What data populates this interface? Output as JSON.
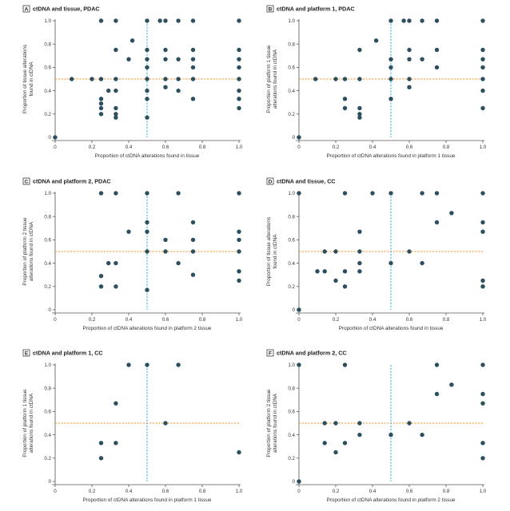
{
  "chart_data": [
    {
      "letter": "A",
      "title": "ctDNA and tissue, PDAC",
      "type": "scatter",
      "xlabel": "Proportion of ctDNA alterations found in tissue",
      "ylabel": [
        "Proportion of tissue alterations",
        "found in ctDNA"
      ],
      "xlim": [
        0,
        1.0
      ],
      "ylim": [
        0,
        1.0
      ],
      "xticks": [
        "0",
        "0.2",
        "0.4",
        "0.6",
        "0.8",
        "1.0"
      ],
      "yticks": [
        "0",
        "0.2",
        "0.4",
        "0.6",
        "0.8",
        "1.0"
      ],
      "hline": 0.5,
      "vline": 0.5,
      "points": [
        {
          "x": 0,
          "y": 0
        },
        {
          "x": 0.09,
          "y": 0.5
        },
        {
          "x": 0.2,
          "y": 0.5
        },
        {
          "x": 0.25,
          "y": 0.5
        },
        {
          "x": 0.25,
          "y": 0.33
        },
        {
          "x": 0.25,
          "y": 0.29
        },
        {
          "x": 0.25,
          "y": 0.25
        },
        {
          "x": 0.25,
          "y": 0.2
        },
        {
          "x": 0.25,
          "y": 1
        },
        {
          "x": 0.29,
          "y": 0.4
        },
        {
          "x": 0.33,
          "y": 0.5
        },
        {
          "x": 0.33,
          "y": 0.4
        },
        {
          "x": 0.33,
          "y": 0.25
        },
        {
          "x": 0.33,
          "y": 0.2
        },
        {
          "x": 0.33,
          "y": 0.17
        },
        {
          "x": 0.33,
          "y": 0.75
        },
        {
          "x": 0.33,
          "y": 1
        },
        {
          "x": 0.4,
          "y": 0.67
        },
        {
          "x": 0.42,
          "y": 0.83
        },
        {
          "x": 0.5,
          "y": 1
        },
        {
          "x": 0.5,
          "y": 0.75
        },
        {
          "x": 0.5,
          "y": 0.67
        },
        {
          "x": 0.5,
          "y": 0.6
        },
        {
          "x": 0.5,
          "y": 0.5
        },
        {
          "x": 0.5,
          "y": 0.4
        },
        {
          "x": 0.5,
          "y": 0.33
        },
        {
          "x": 0.5,
          "y": 0.17
        },
        {
          "x": 0.57,
          "y": 1
        },
        {
          "x": 0.6,
          "y": 1
        },
        {
          "x": 0.6,
          "y": 0.75
        },
        {
          "x": 0.6,
          "y": 0.67
        },
        {
          "x": 0.6,
          "y": 0.5
        },
        {
          "x": 0.6,
          "y": 0.43
        },
        {
          "x": 0.67,
          "y": 1
        },
        {
          "x": 0.67,
          "y": 0.67
        },
        {
          "x": 0.67,
          "y": 0.5
        },
        {
          "x": 0.67,
          "y": 0.4
        },
        {
          "x": 0.75,
          "y": 1
        },
        {
          "x": 0.75,
          "y": 0.75
        },
        {
          "x": 0.75,
          "y": 0.67
        },
        {
          "x": 0.75,
          "y": 0.6
        },
        {
          "x": 0.75,
          "y": 0.5
        },
        {
          "x": 0.75,
          "y": 0.33
        },
        {
          "x": 1,
          "y": 1
        },
        {
          "x": 1,
          "y": 0.75
        },
        {
          "x": 1,
          "y": 0.67
        },
        {
          "x": 1,
          "y": 0.6
        },
        {
          "x": 1,
          "y": 0.5
        },
        {
          "x": 1,
          "y": 0.4
        },
        {
          "x": 1,
          "y": 0.33
        },
        {
          "x": 1,
          "y": 0.25
        }
      ]
    },
    {
      "letter": "B",
      "title": "ctDNA and platform 1, PDAC",
      "type": "scatter",
      "xlabel": "Proportion of ctDNA alterations found in platform 1 tissue",
      "ylabel": [
        "Proportion of platform 1 tissue",
        "alterations found in ctDNA"
      ],
      "xlim": [
        0,
        1.0
      ],
      "ylim": [
        0,
        1.0
      ],
      "xticks": [
        "0",
        "0.2",
        "0.4",
        "0.6",
        "0.8",
        "1.0"
      ],
      "yticks": [
        "0",
        "0.2",
        "0.4",
        "0.6",
        "0.8",
        "1.0"
      ],
      "hline": 0.5,
      "vline": 0.5,
      "points": [
        {
          "x": 0,
          "y": 0
        },
        {
          "x": 0.09,
          "y": 0.5
        },
        {
          "x": 0.2,
          "y": 0.5
        },
        {
          "x": 0.25,
          "y": 0.5
        },
        {
          "x": 0.25,
          "y": 0.33
        },
        {
          "x": 0.25,
          "y": 0.25
        },
        {
          "x": 0.33,
          "y": 0.75
        },
        {
          "x": 0.33,
          "y": 0.5
        },
        {
          "x": 0.33,
          "y": 0.25
        },
        {
          "x": 0.33,
          "y": 0.2
        },
        {
          "x": 0.33,
          "y": 0.17
        },
        {
          "x": 0.42,
          "y": 0.83
        },
        {
          "x": 0.5,
          "y": 1
        },
        {
          "x": 0.5,
          "y": 0.67
        },
        {
          "x": 0.5,
          "y": 0.6
        },
        {
          "x": 0.5,
          "y": 0.5
        },
        {
          "x": 0.5,
          "y": 0.33
        },
        {
          "x": 0.57,
          "y": 1
        },
        {
          "x": 0.6,
          "y": 1
        },
        {
          "x": 0.6,
          "y": 0.75
        },
        {
          "x": 0.6,
          "y": 0.67
        },
        {
          "x": 0.6,
          "y": 0.5
        },
        {
          "x": 0.6,
          "y": 0.43
        },
        {
          "x": 0.67,
          "y": 1
        },
        {
          "x": 0.67,
          "y": 0.67
        },
        {
          "x": 0.75,
          "y": 1
        },
        {
          "x": 0.75,
          "y": 0.75
        },
        {
          "x": 0.75,
          "y": 0.6
        },
        {
          "x": 1,
          "y": 1
        },
        {
          "x": 1,
          "y": 0.75
        },
        {
          "x": 1,
          "y": 0.67
        },
        {
          "x": 1,
          "y": 0.6
        },
        {
          "x": 1,
          "y": 0.5
        },
        {
          "x": 1,
          "y": 0.4
        },
        {
          "x": 1,
          "y": 0.25
        }
      ]
    },
    {
      "letter": "C",
      "title": "ctDNA and platform 2, PDAC",
      "type": "scatter",
      "xlabel": "Proportion of ctDNA alterations found in platform 2 tissue",
      "ylabel": [
        "Proportion of platform 2 tissue",
        "alterations found in ctDNA"
      ],
      "xlim": [
        0,
        1.0
      ],
      "ylim": [
        0,
        1.0
      ],
      "xticks": [
        "0",
        "0.2",
        "0.4",
        "0.6",
        "0.8",
        "1.0"
      ],
      "yticks": [
        "0",
        "0.2",
        "0.4",
        "0.6",
        "0.8",
        "1.0"
      ],
      "hline": 0.5,
      "vline": 0.5,
      "points": [
        {
          "x": 0.25,
          "y": 1
        },
        {
          "x": 0.25,
          "y": 0.29
        },
        {
          "x": 0.25,
          "y": 0.2
        },
        {
          "x": 0.29,
          "y": 0.4
        },
        {
          "x": 0.33,
          "y": 1
        },
        {
          "x": 0.33,
          "y": 0.4
        },
        {
          "x": 0.33,
          "y": 0.2
        },
        {
          "x": 0.4,
          "y": 0.67
        },
        {
          "x": 0.5,
          "y": 1
        },
        {
          "x": 0.5,
          "y": 0.75
        },
        {
          "x": 0.5,
          "y": 0.67
        },
        {
          "x": 0.5,
          "y": 0.5
        },
        {
          "x": 0.5,
          "y": 0.17
        },
        {
          "x": 0.6,
          "y": 0.6
        },
        {
          "x": 0.6,
          "y": 0.5
        },
        {
          "x": 0.67,
          "y": 1
        },
        {
          "x": 0.67,
          "y": 0.4
        },
        {
          "x": 0.75,
          "y": 0.75
        },
        {
          "x": 0.75,
          "y": 0.6
        },
        {
          "x": 0.75,
          "y": 0.5
        },
        {
          "x": 0.75,
          "y": 0.3
        },
        {
          "x": 1,
          "y": 1
        },
        {
          "x": 1,
          "y": 0.67
        },
        {
          "x": 1,
          "y": 0.6
        },
        {
          "x": 1,
          "y": 0.5
        },
        {
          "x": 1,
          "y": 0.33
        },
        {
          "x": 1,
          "y": 0.25
        }
      ]
    },
    {
      "letter": "D",
      "title": "ctDNA and tissue, CC",
      "type": "scatter",
      "xlabel": "Proportion of ctDNA alterations found in tissue",
      "ylabel": [
        "Proportion of tissue alterations",
        "found in ctDNA"
      ],
      "xlim": [
        0,
        1.0
      ],
      "ylim": [
        0,
        1.0
      ],
      "xticks": [
        "0",
        "0.2",
        "0.4",
        "0.6",
        "0.8",
        "1.0"
      ],
      "yticks": [
        "0",
        "0.2",
        "0.4",
        "0.6",
        "0.8",
        "1.0"
      ],
      "hline": 0.5,
      "vline": 0.5,
      "points": [
        {
          "x": 0,
          "y": 0
        },
        {
          "x": 0,
          "y": 1
        },
        {
          "x": 0.1,
          "y": 0.33
        },
        {
          "x": 0.14,
          "y": 0.5
        },
        {
          "x": 0.14,
          "y": 0.33
        },
        {
          "x": 0.2,
          "y": 0.5
        },
        {
          "x": 0.2,
          "y": 0.25
        },
        {
          "x": 0.25,
          "y": 1
        },
        {
          "x": 0.25,
          "y": 0.33
        },
        {
          "x": 0.25,
          "y": 0.2
        },
        {
          "x": 0.33,
          "y": 0.67
        },
        {
          "x": 0.33,
          "y": 0.5
        },
        {
          "x": 0.33,
          "y": 0.4
        },
        {
          "x": 0.33,
          "y": 0.33
        },
        {
          "x": 0.4,
          "y": 1
        },
        {
          "x": 0.5,
          "y": 1
        },
        {
          "x": 0.5,
          "y": 0.4
        },
        {
          "x": 0.6,
          "y": 0.5
        },
        {
          "x": 0.67,
          "y": 1
        },
        {
          "x": 0.67,
          "y": 0.4
        },
        {
          "x": 0.75,
          "y": 1
        },
        {
          "x": 0.75,
          "y": 0.75
        },
        {
          "x": 0.83,
          "y": 0.83
        },
        {
          "x": 1,
          "y": 1
        },
        {
          "x": 1,
          "y": 0.75
        },
        {
          "x": 1,
          "y": 0.67
        },
        {
          "x": 1,
          "y": 0.25
        },
        {
          "x": 1,
          "y": 0.2
        }
      ]
    },
    {
      "letter": "E",
      "title": "ctDNA and platform 1, CC",
      "type": "scatter",
      "xlabel": "Proportion of ctDNA alterations found in platform 1 tissue",
      "ylabel": [
        "Proportion of platform 1 tissue",
        "alterations found in ctDNA"
      ],
      "xlim": [
        0,
        1.0
      ],
      "ylim": [
        0,
        1.0
      ],
      "xticks": [
        "0",
        "0.2",
        "0.4",
        "0.6",
        "0.8",
        "1.0"
      ],
      "yticks": [
        "0",
        "0.2",
        "0.4",
        "0.6",
        "0.8",
        "1.0"
      ],
      "hline": 0.5,
      "vline": 0.5,
      "points": [
        {
          "x": 0.25,
          "y": 0.33
        },
        {
          "x": 0.25,
          "y": 0.2
        },
        {
          "x": 0.33,
          "y": 0.67
        },
        {
          "x": 0.33,
          "y": 0.33
        },
        {
          "x": 0.4,
          "y": 1
        },
        {
          "x": 0.5,
          "y": 1
        },
        {
          "x": 0.6,
          "y": 0.5
        },
        {
          "x": 0.67,
          "y": 1
        },
        {
          "x": 1,
          "y": 0.25
        }
      ]
    },
    {
      "letter": "F",
      "title": "ctDNA and platform 2, CC",
      "type": "scatter",
      "xlabel": "Proportion of ctDNA alterations found in platform 2 tissue",
      "ylabel": [
        "Proportion of platform 2 tissue",
        "alterations found in ctDNA"
      ],
      "xlim": [
        0,
        1.0
      ],
      "ylim": [
        0,
        1.0
      ],
      "xticks": [
        "0",
        "0.2",
        "0.4",
        "0.6",
        "0.8",
        "1.0"
      ],
      "yticks": [
        "0",
        "0.2",
        "0.4",
        "0.6",
        "0.8",
        "1.0"
      ],
      "hline": 0.5,
      "vline": 0.5,
      "points": [
        {
          "x": 0,
          "y": 0
        },
        {
          "x": 0,
          "y": 1
        },
        {
          "x": 0.14,
          "y": 0.5
        },
        {
          "x": 0.14,
          "y": 0.33
        },
        {
          "x": 0.2,
          "y": 0.5
        },
        {
          "x": 0.2,
          "y": 0.25
        },
        {
          "x": 0.25,
          "y": 1
        },
        {
          "x": 0.25,
          "y": 0.33
        },
        {
          "x": 0.33,
          "y": 0.5
        },
        {
          "x": 0.33,
          "y": 0.4
        },
        {
          "x": 0.5,
          "y": 0.4
        },
        {
          "x": 0.6,
          "y": 0.5
        },
        {
          "x": 0.67,
          "y": 0.4
        },
        {
          "x": 0.75,
          "y": 1
        },
        {
          "x": 0.75,
          "y": 0.75
        },
        {
          "x": 0.83,
          "y": 0.83
        },
        {
          "x": 1,
          "y": 1
        },
        {
          "x": 1,
          "y": 0.75
        },
        {
          "x": 1,
          "y": 0.67
        },
        {
          "x": 1,
          "y": 0.33
        },
        {
          "x": 1,
          "y": 0.2
        }
      ]
    }
  ],
  "colors": {
    "dot": "#2c4f5e",
    "hline": "#f0932b",
    "vline": "#29a9d9"
  }
}
